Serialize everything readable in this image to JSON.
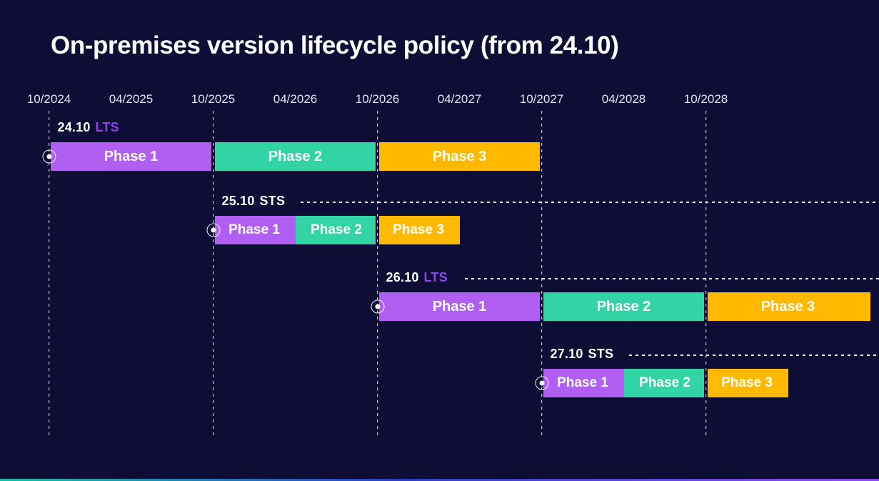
{
  "title": "On-premises version lifecycle policy (from 24.10)",
  "colors": {
    "background": "#0d0d36",
    "phase1": "#b15ef2",
    "phase2": "#32d3a4",
    "phase3": "#ffba00",
    "lts_text": "#9044f0",
    "sts_text": "#ffffff",
    "axis_text": "#e4e4ee",
    "grid_line": "#ffffff",
    "accent_gradient": [
      "#13bfa0",
      "#2e3ec2",
      "#8a4cf0"
    ]
  },
  "chart_data": {
    "type": "gantt",
    "title": "On-premises version lifecycle policy (from 24.10)",
    "x_axis": {
      "start": "10/2024",
      "months_per_tick": 6,
      "ticks": [
        "10/2024",
        "04/2025",
        "10/2025",
        "04/2026",
        "10/2026",
        "04/2027",
        "10/2027",
        "04/2028",
        "10/2028"
      ],
      "gridlines_at": [
        "10/2024",
        "10/2025",
        "10/2026",
        "10/2027",
        "10/2028"
      ]
    },
    "rows": [
      {
        "version": "24.10",
        "channel": "LTS",
        "start_marker": "10/2024",
        "continuation_line": false,
        "phases": [
          {
            "label": "Phase 1",
            "start": "10/2024",
            "end": "10/2025",
            "color_key": "phase1"
          },
          {
            "label": "Phase 2",
            "start": "10/2025",
            "end": "10/2026",
            "color_key": "phase2"
          },
          {
            "label": "Phase 3",
            "start": "10/2026",
            "end": "10/2027",
            "color_key": "phase3"
          }
        ]
      },
      {
        "version": "25.10",
        "channel": "STS",
        "start_marker": "10/2025",
        "continuation_line": true,
        "phases": [
          {
            "label": "Phase 1",
            "start": "10/2025",
            "end": "04/2026",
            "color_key": "phase1"
          },
          {
            "label": "Phase 2",
            "start": "04/2026",
            "end": "10/2026",
            "color_key": "phase2"
          },
          {
            "label": "Phase 3",
            "start": "10/2026",
            "end": "04/2027",
            "color_key": "phase3"
          }
        ]
      },
      {
        "version": "26.10",
        "channel": "LTS",
        "start_marker": "10/2026",
        "continuation_line": true,
        "phases": [
          {
            "label": "Phase 1",
            "start": "10/2026",
            "end": "10/2027",
            "color_key": "phase1"
          },
          {
            "label": "Phase 2",
            "start": "10/2027",
            "end": "10/2028",
            "color_key": "phase2"
          },
          {
            "label": "Phase 3",
            "start": "10/2028",
            "end": "10/2029",
            "color_key": "phase3"
          }
        ]
      },
      {
        "version": "27.10",
        "channel": "STS",
        "start_marker": "10/2027",
        "continuation_line": true,
        "phases": [
          {
            "label": "Phase 1",
            "start": "10/2027",
            "end": "04/2028",
            "color_key": "phase1"
          },
          {
            "label": "Phase 2",
            "start": "04/2028",
            "end": "10/2028",
            "color_key": "phase2"
          },
          {
            "label": "Phase 3",
            "start": "10/2028",
            "end": "04/2029",
            "color_key": "phase3"
          }
        ]
      }
    ]
  }
}
